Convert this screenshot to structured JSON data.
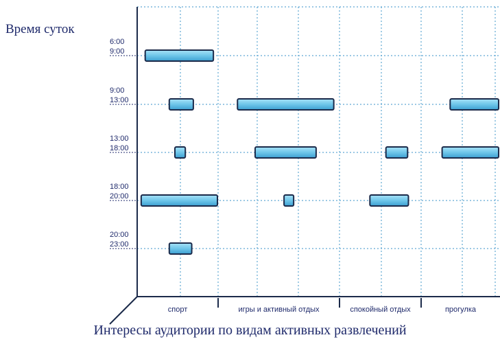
{
  "chart_data": {
    "type": "range-bar",
    "ylabel": "Время суток",
    "xlabel": "Интересы аудитории по видам активных развлечений",
    "categories": [
      "спорт",
      "игры и активный отдых",
      "спокойный отдых",
      "прогулка"
    ],
    "time_slots": [
      {
        "from": "6:00",
        "to": "9:00"
      },
      {
        "from": "9:00",
        "to": "13:00"
      },
      {
        "from": "13:00",
        "to": "18:00"
      },
      {
        "from": "18:00",
        "to": "20:00"
      },
      {
        "from": "20:00",
        "to": "23:00"
      }
    ],
    "x_range": [
      0,
      4.4
    ],
    "segments": [
      {
        "slot": 0,
        "start": 0.1,
        "end": 0.95
      },
      {
        "slot": 1,
        "start": 0.4,
        "end": 0.7
      },
      {
        "slot": 1,
        "start": 1.25,
        "end": 2.45
      },
      {
        "slot": 1,
        "start": 3.9,
        "end": 4.65
      },
      {
        "slot": 2,
        "start": 0.47,
        "end": 0.6
      },
      {
        "slot": 2,
        "start": 1.47,
        "end": 2.23
      },
      {
        "slot": 2,
        "start": 3.1,
        "end": 3.37
      },
      {
        "slot": 2,
        "start": 3.8,
        "end": 4.75
      },
      {
        "slot": 3,
        "start": 0.05,
        "end": 1.0
      },
      {
        "slot": 3,
        "start": 1.83,
        "end": 1.95
      },
      {
        "slot": 3,
        "start": 2.9,
        "end": 3.38
      },
      {
        "slot": 4,
        "start": 0.4,
        "end": 0.68
      }
    ],
    "grid": true,
    "bar_color": "#6ec6ea",
    "bar_edge_color": "#1b2a4a",
    "grid_color": "#5fa8d3"
  }
}
